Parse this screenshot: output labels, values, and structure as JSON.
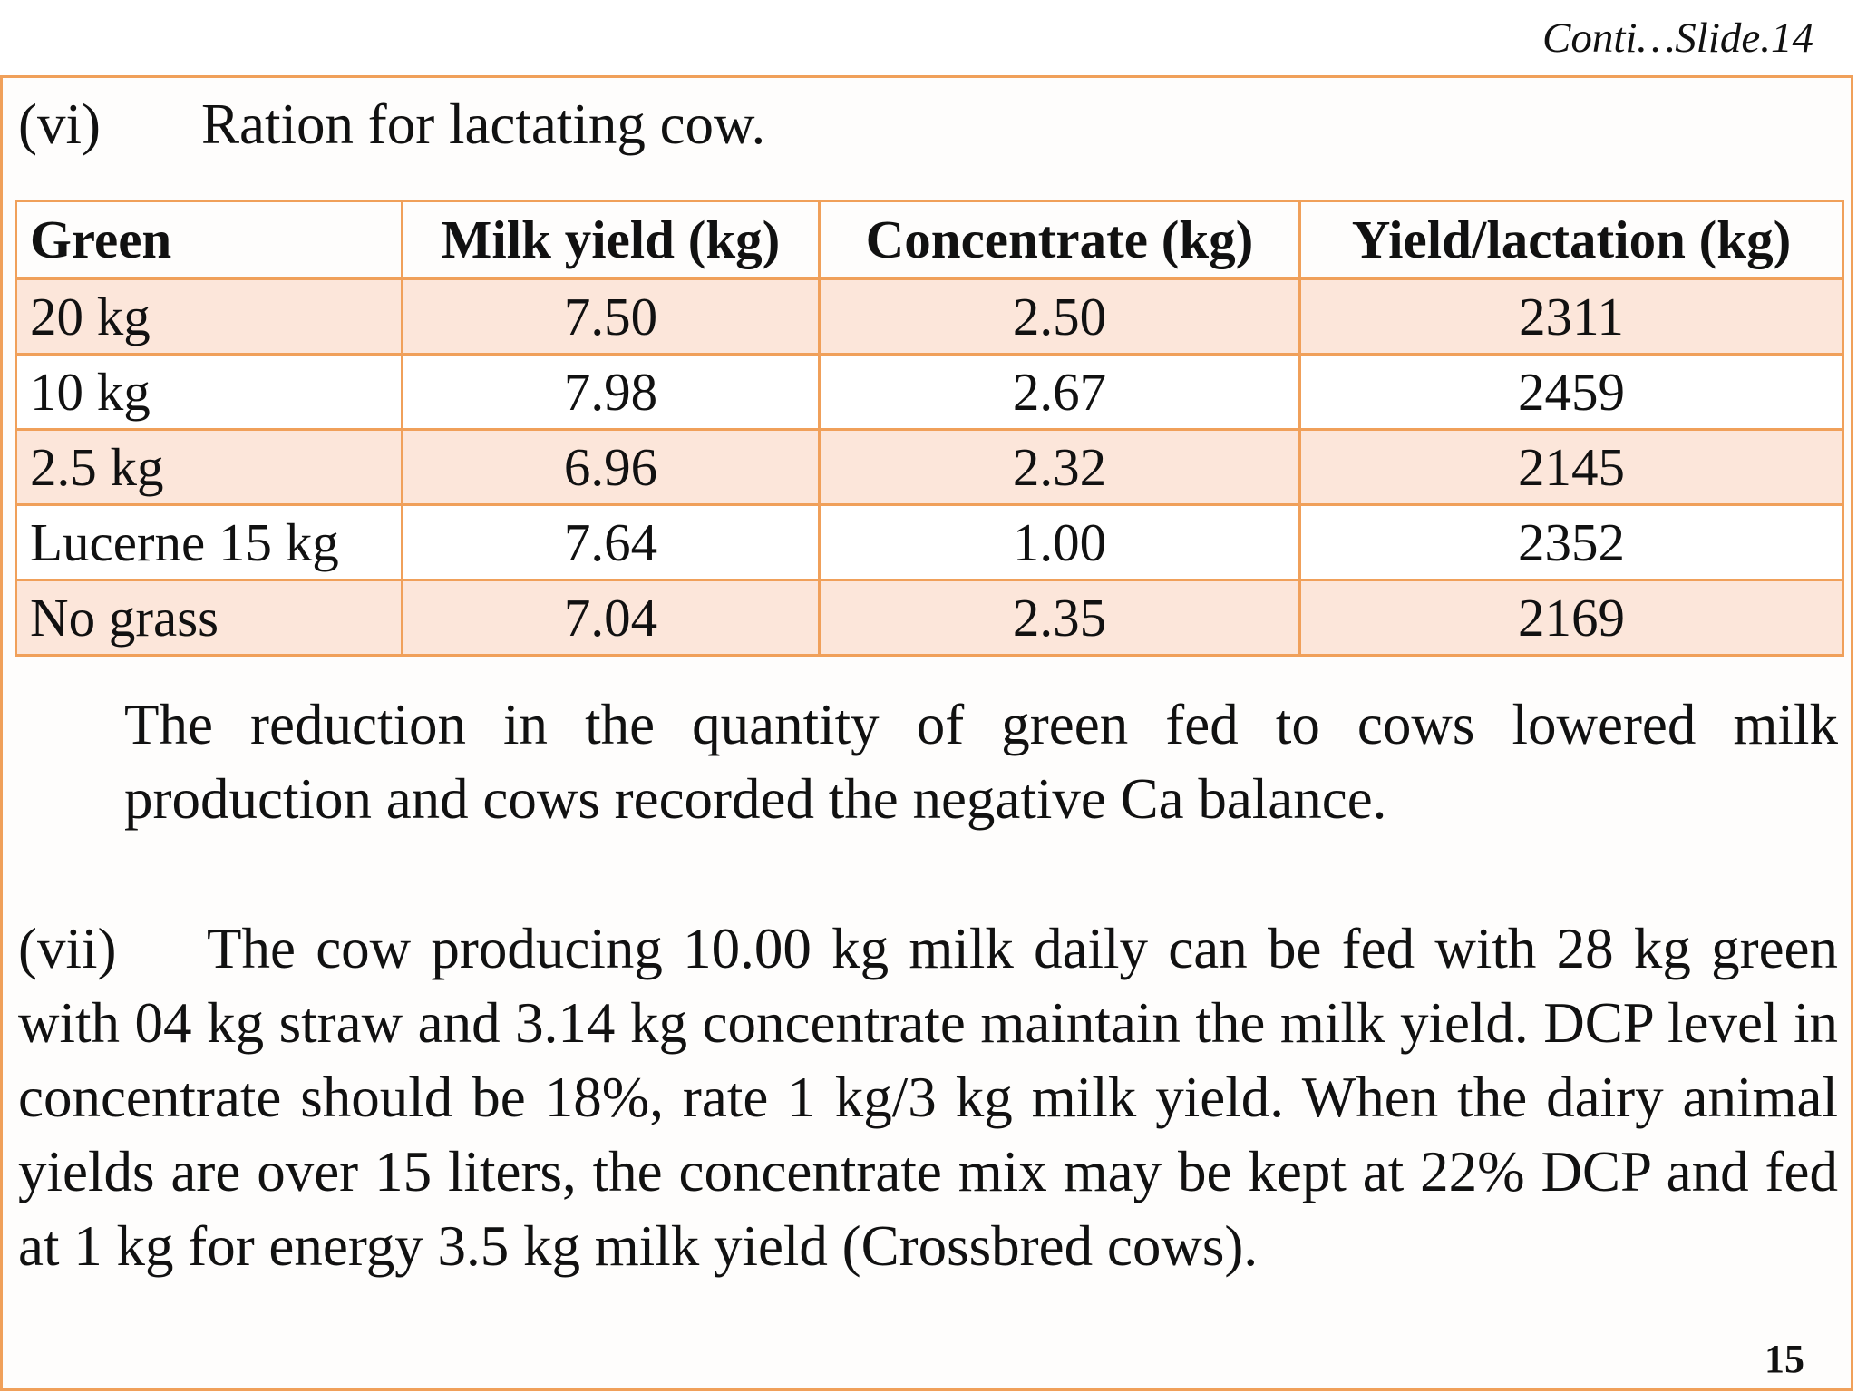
{
  "header": {
    "slide_ref": "Conti…Slide.14"
  },
  "section_vi": {
    "number": "(vi)",
    "title": "Ration for lactating cow."
  },
  "table": {
    "headers": [
      "Green",
      "Milk yield (kg)",
      "Concentrate (kg)",
      "Yield/lactation (kg)"
    ],
    "rows": [
      [
        "20 kg",
        "7.50",
        "2.50",
        "2311"
      ],
      [
        "10 kg",
        "7.98",
        "2.67",
        "2459"
      ],
      [
        "2.5 kg",
        "6.96",
        "2.32",
        "2145"
      ],
      [
        "Lucerne 15 kg",
        "7.64",
        "1.00",
        "2352"
      ],
      [
        "No grass",
        "7.04",
        "2.35",
        "2169"
      ]
    ]
  },
  "paragraph_1": "The reduction in the quantity of green fed to cows lowered milk production and cows recorded the negative Ca balance.",
  "section_vii": {
    "number": "(vii)",
    "text": "The cow producing 10.00 kg milk daily can be fed with 28 kg green with 04 kg straw and 3.14 kg concentrate maintain the milk yield. DCP level in concentrate should be 18%, rate 1 kg/3 kg milk yield. When the dairy animal yields are over 15 liters, the concentrate mix may be kept at 22% DCP and fed at 1 kg for energy 3.5 kg milk yield (Crossbred cows)."
  },
  "page_number": "15",
  "colors": {
    "border": "#F0A05A",
    "row_shade": "#FCE6DA"
  }
}
